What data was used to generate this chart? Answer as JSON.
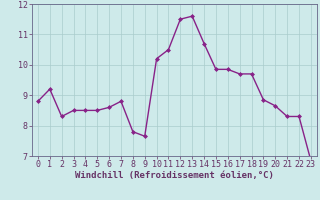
{
  "x": [
    0,
    1,
    2,
    3,
    4,
    5,
    6,
    7,
    8,
    9,
    10,
    11,
    12,
    13,
    14,
    15,
    16,
    17,
    18,
    19,
    20,
    21,
    22,
    23
  ],
  "y": [
    8.8,
    9.2,
    8.3,
    8.5,
    8.5,
    8.5,
    8.6,
    8.8,
    7.8,
    7.65,
    10.2,
    10.5,
    11.5,
    11.6,
    10.7,
    9.85,
    9.85,
    9.7,
    9.7,
    8.85,
    8.65,
    8.3,
    8.3,
    6.85
  ],
  "line_color": "#882288",
  "marker": "D",
  "marker_size": 2.0,
  "bg_color": "#ceeaea",
  "grid_color": "#aacccc",
  "xlabel": "Windchill (Refroidissement éolien,°C)",
  "ylim": [
    7,
    12
  ],
  "xlim": [
    -0.5,
    23.5
  ],
  "yticks": [
    7,
    8,
    9,
    10,
    11,
    12
  ],
  "xticks": [
    0,
    1,
    2,
    3,
    4,
    5,
    6,
    7,
    8,
    9,
    10,
    11,
    12,
    13,
    14,
    15,
    16,
    17,
    18,
    19,
    20,
    21,
    22,
    23
  ],
  "xlabel_fontsize": 6.5,
  "tick_fontsize": 6.0,
  "line_width": 1.0,
  "axis_color": "#663366",
  "spine_color": "#666688"
}
